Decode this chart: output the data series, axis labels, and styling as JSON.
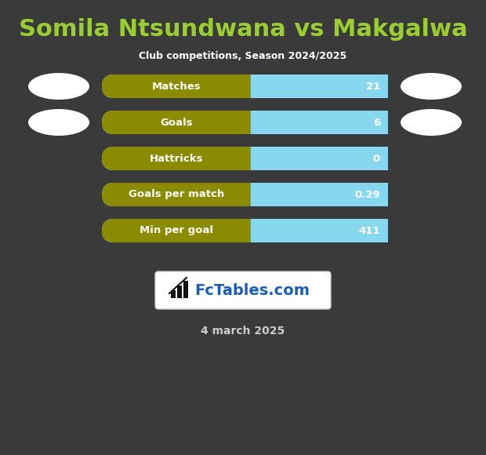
{
  "title": "Somila Ntsundwana vs Makgalwa",
  "subtitle": "Club competitions, Season 2024/2025",
  "date_text": "4 march 2025",
  "background_color": "#3a3a3a",
  "title_color": "#9acd32",
  "subtitle_color": "#ffffff",
  "date_color": "#cccccc",
  "stats": [
    {
      "label": "Matches",
      "value": "21",
      "has_ellipse": true
    },
    {
      "label": "Goals",
      "value": "6",
      "has_ellipse": true
    },
    {
      "label": "Hattricks",
      "value": "0",
      "has_ellipse": false
    },
    {
      "label": "Goals per match",
      "value": "0.29",
      "has_ellipse": false
    },
    {
      "label": "Min per goal",
      "value": "411",
      "has_ellipse": false
    }
  ],
  "bar_left_color": "#8b8b00",
  "bar_right_color": "#87d7ef",
  "bar_text_color": "#ffffff",
  "ellipse_color": "#ffffff",
  "split_ratio": 0.52,
  "logo_box_color": "#ffffff",
  "logo_box_border": "#cccccc",
  "logo_text": "FcTables.com",
  "logo_text_color": "#1a5eb8",
  "logo_icon_color": "#111111"
}
